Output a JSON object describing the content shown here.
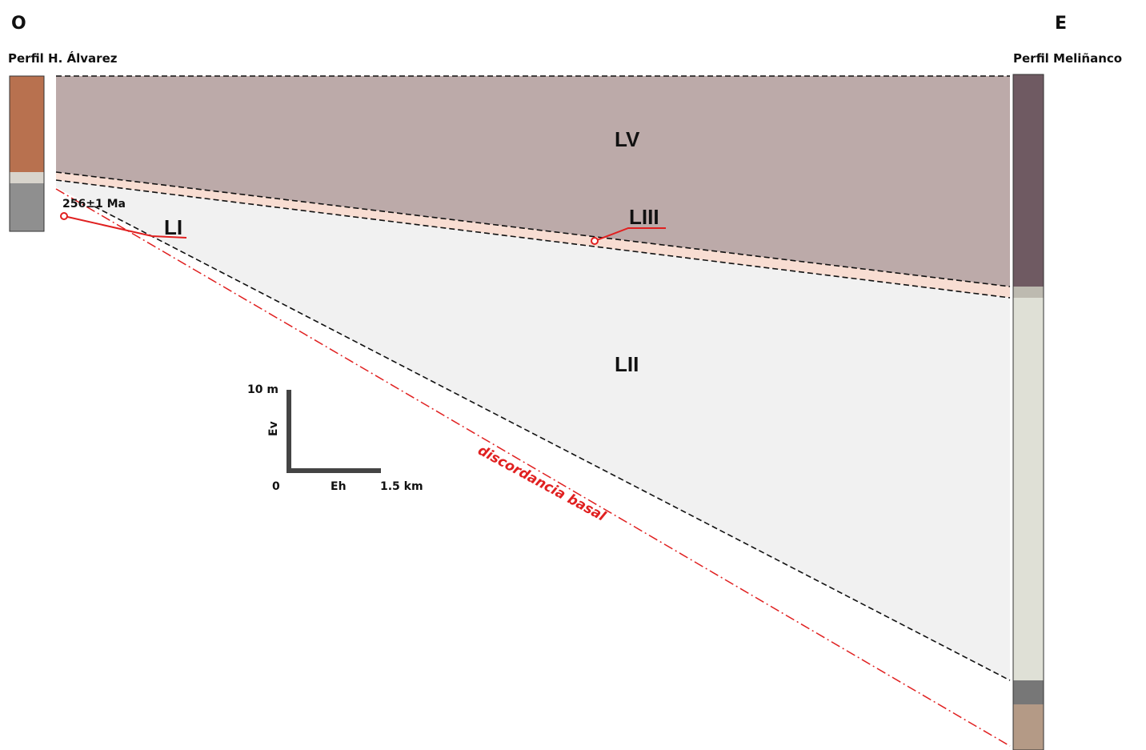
{
  "header": {
    "west": "O",
    "east": "E"
  },
  "profiles": {
    "west": "Perfil H. Álvarez",
    "east": "Perfil Meliñanco"
  },
  "units": {
    "lv": "LV",
    "liii": "LIII",
    "lii": "LII",
    "li": "LI"
  },
  "annotations": {
    "age": "256±1 Ma",
    "unconformity": "discordancia basal"
  },
  "scale": {
    "vertical_max": "10 m",
    "vertical_axis": "Ev",
    "origin": "0",
    "horizontal_axis": "Eh",
    "horizontal_max": "1.5 km"
  }
}
